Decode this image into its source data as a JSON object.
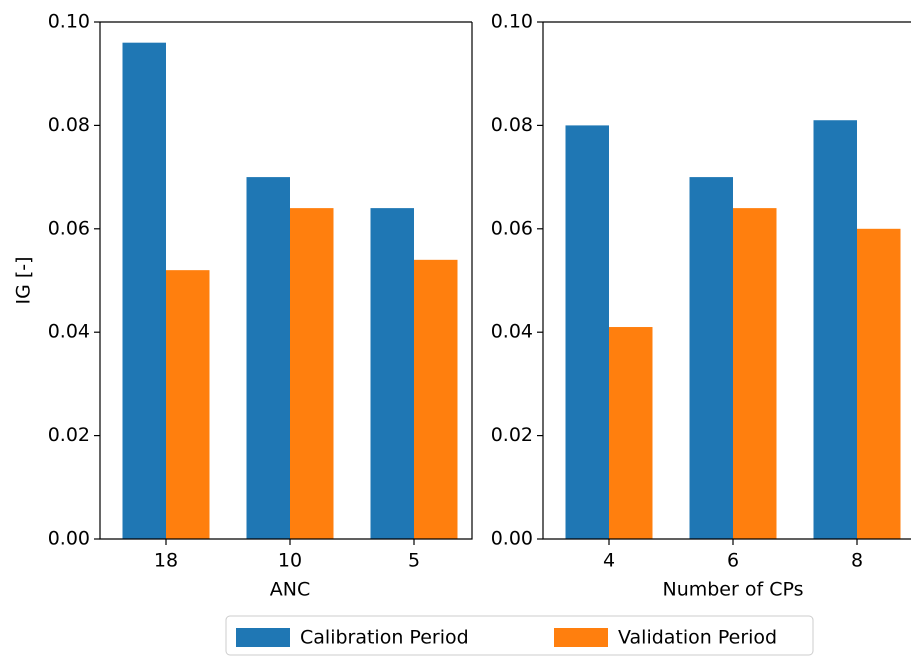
{
  "chart_data": [
    {
      "type": "bar",
      "x_label": "ANC",
      "y_label": "IG [-]",
      "categories": [
        "18",
        "10",
        "5"
      ],
      "series": [
        {
          "name": "Calibration Period",
          "color": "#1f77b4",
          "values": [
            0.096,
            0.07,
            0.064
          ]
        },
        {
          "name": "Validation Period",
          "color": "#ff7f0e",
          "values": [
            0.052,
            0.064,
            0.054
          ]
        }
      ],
      "ylim": [
        0,
        0.1
      ],
      "yticks": [
        {
          "value": 0,
          "label": "0.00"
        },
        {
          "value": 0.02,
          "label": "0.02"
        },
        {
          "value": 0.04,
          "label": "0.04"
        },
        {
          "value": 0.06,
          "label": "0.06"
        },
        {
          "value": 0.08,
          "label": "0.08"
        },
        {
          "value": 0.1,
          "label": "0.10"
        }
      ]
    },
    {
      "type": "bar",
      "x_label": "Number of CPs",
      "categories": [
        "4",
        "6",
        "8"
      ],
      "series": [
        {
          "name": "Calibration Period",
          "color": "#1f77b4",
          "values": [
            0.08,
            0.07,
            0.081
          ]
        },
        {
          "name": "Validation Period",
          "color": "#ff7f0e",
          "values": [
            0.041,
            0.064,
            0.06
          ]
        }
      ],
      "ylim": [
        0,
        0.1
      ],
      "yticks": [
        {
          "value": 0,
          "label": "0.00"
        },
        {
          "value": 0.02,
          "label": "0.02"
        },
        {
          "value": 0.04,
          "label": "0.04"
        },
        {
          "value": 0.06,
          "label": "0.06"
        },
        {
          "value": 0.08,
          "label": "0.08"
        },
        {
          "value": 0.1,
          "label": "0.10"
        }
      ]
    }
  ]
}
